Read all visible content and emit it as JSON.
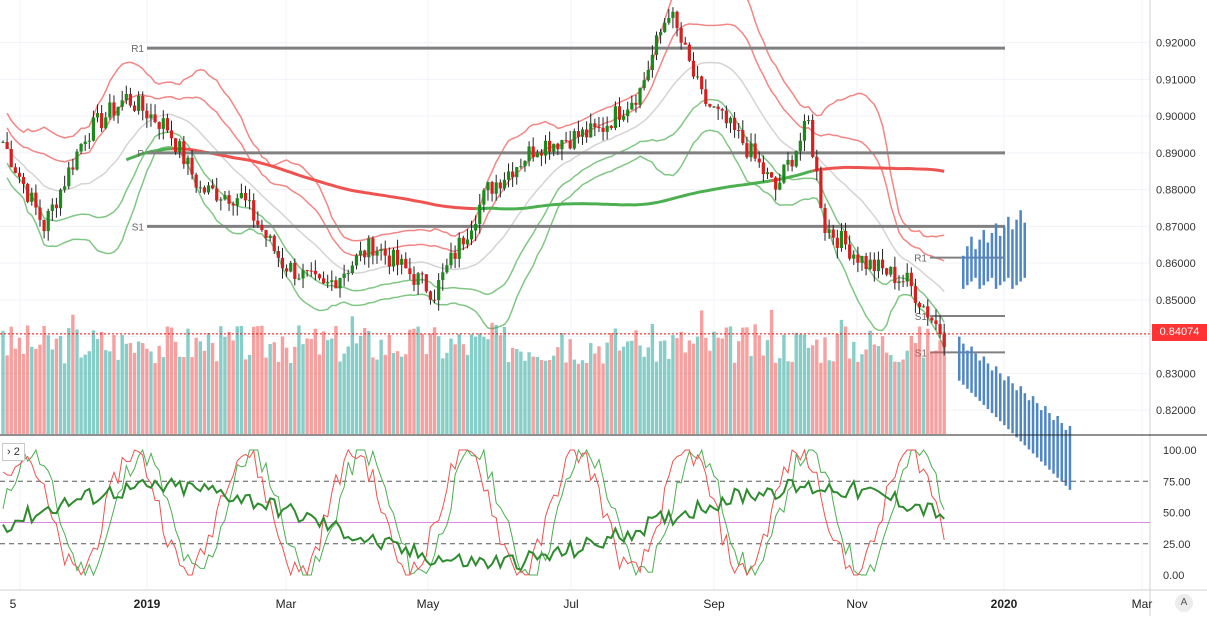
{
  "chart_data": {
    "type": "candlestick",
    "price_axis": {
      "ticks": [
        "0.92000",
        "0.91000",
        "0.90000",
        "0.89000",
        "0.88000",
        "0.87000",
        "0.86000",
        "0.85000",
        "0.84000",
        "0.83000",
        "0.82000"
      ],
      "range": [
        0.8135,
        0.9316
      ]
    },
    "last_price": "0.84074",
    "time_axis": [
      "5",
      "2019",
      "Mar",
      "May",
      "Jul",
      "Sep",
      "Nov",
      "2020",
      "Mar"
    ],
    "level_labels": {
      "long_term": [
        "R1",
        "P",
        "S1"
      ],
      "short_term": [
        "R1",
        "S1",
        "S1"
      ]
    },
    "oscillator": {
      "legend": "2",
      "ticks": [
        "100.00",
        "75.00",
        "50.00",
        "25.00",
        "0.00"
      ],
      "range": [
        0,
        100
      ],
      "bands": [
        75,
        25
      ],
      "midline": 42
    },
    "colors": {
      "up": "#26a69a",
      "down": "#ef5350",
      "candle_up": "#1b8a1b",
      "candle_down": "#d61f1f",
      "level_line": "#808080",
      "ma_green": "#4caf50",
      "ma_red": "#ef5350",
      "projection": "#4f86c6"
    }
  }
}
